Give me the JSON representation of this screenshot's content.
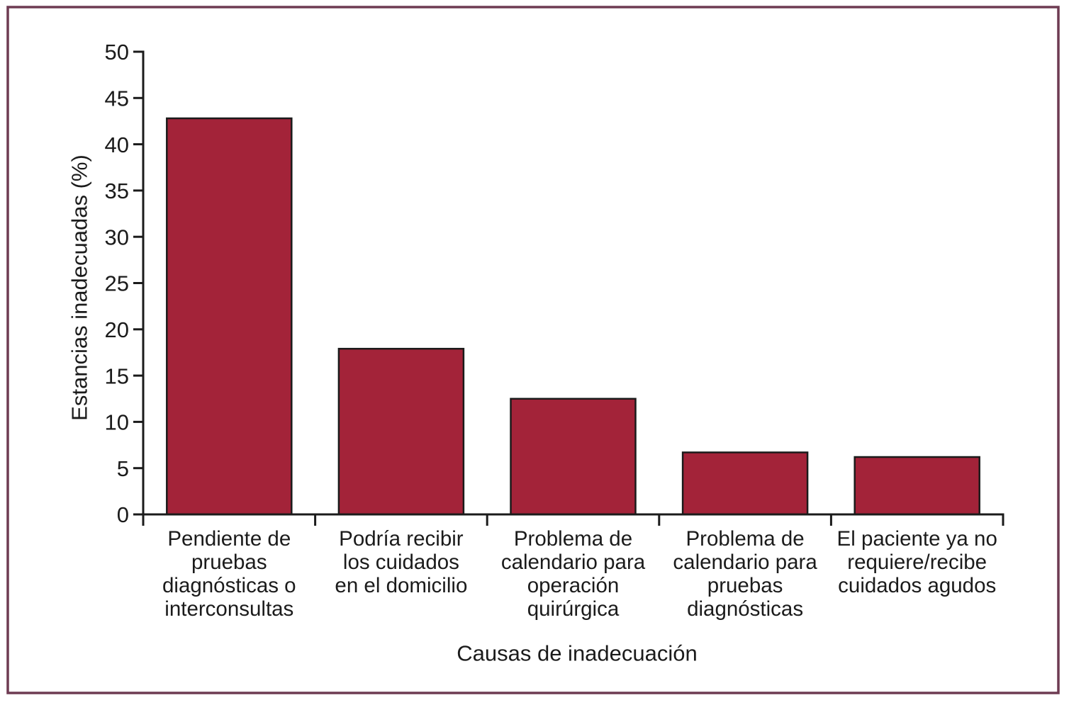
{
  "figure": {
    "background": "#FFFFFF",
    "frame_color": "#6E3B52"
  },
  "chart_data": {
    "type": "bar",
    "title": "",
    "xlabel": "Causas de inadecuación",
    "ylabel": "Estancias inadecuadas (%)",
    "categories": [
      [
        "Pendiente de",
        "pruebas",
        "diagnósticas o",
        "interconsultas"
      ],
      [
        "Podría recibir",
        "los cuidados",
        "en el domicilio"
      ],
      [
        "Problema de",
        "calendario para",
        "operación",
        "quirúrgica"
      ],
      [
        "Problema de",
        "calendario para",
        "pruebas",
        "diagnósticas"
      ],
      [
        "El paciente ya no",
        "requiere/recibe",
        "cuidados agudos"
      ]
    ],
    "values": [
      42.8,
      17.9,
      12.5,
      6.7,
      6.2
    ],
    "ylim": [
      0,
      50
    ],
    "ytick_step": 5,
    "grid": false,
    "legend": "none",
    "bar_color": "#A32339",
    "bar_edge_color": "#1B1B1B",
    "axis_color": "#1B1B1B",
    "text_color": "#1B1B1B"
  }
}
